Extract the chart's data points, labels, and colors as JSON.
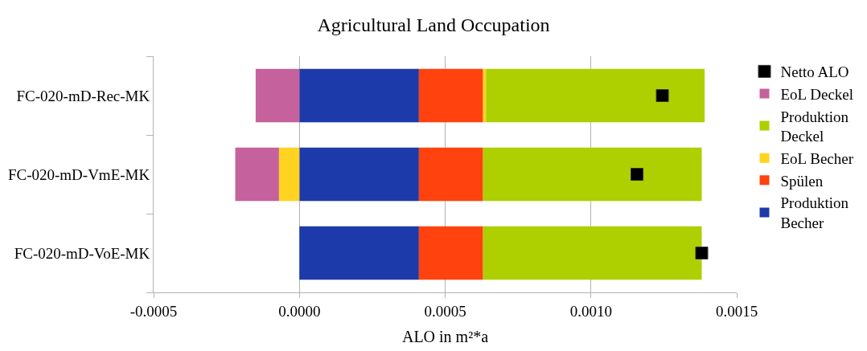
{
  "chart_data": {
    "type": "bar",
    "orientation": "horizontal",
    "stacked": true,
    "title": "Agricultural Land Occupation",
    "xlabel": "ALO in m²*a",
    "categories": [
      "FC-020-mD-Rec-MK",
      "FC-020-mD-VmE-MK",
      "FC-020-mD-VoE-MK"
    ],
    "xlim": [
      -0.0005,
      0.0015
    ],
    "xticks": [
      {
        "value": -0.0005,
        "label": "-0.0005"
      },
      {
        "value": 0,
        "label": "0.0000"
      },
      {
        "value": 0.0005,
        "label": "0.0005"
      },
      {
        "value": 0.001,
        "label": "0.0010"
      },
      {
        "value": 0.0015,
        "label": "0.0015"
      }
    ],
    "grid": "x",
    "legend": "right",
    "series": [
      {
        "name": "Produktion Becher",
        "color": "#1c3aa9",
        "values": [
          0.00041,
          0.00041,
          0.00041
        ]
      },
      {
        "name": "Spülen",
        "color": "#ff420e",
        "values": [
          0.00022,
          0.00022,
          0.00022
        ]
      },
      {
        "name": "EoL Becher",
        "color": "#ffd320",
        "values": [
          1e-05,
          -7e-05,
          null
        ]
      },
      {
        "name": "Produktion Deckel",
        "color": "#aecf00",
        "values": [
          0.00075,
          0.00075,
          0.00075
        ]
      },
      {
        "name": "EoL Deckel",
        "color": "#c5629d",
        "values": [
          -0.00015,
          -0.00015,
          null
        ]
      },
      {
        "name": "Netto ALO",
        "type": "scatter",
        "marker": "square",
        "color": "#000000",
        "values": [
          0.001245,
          0.001158,
          0.00138
        ]
      }
    ]
  }
}
